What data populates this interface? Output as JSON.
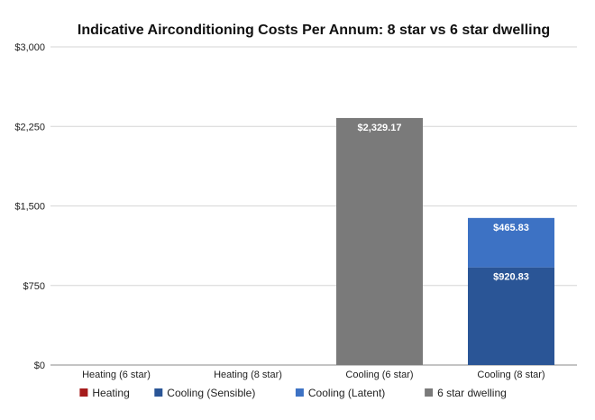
{
  "chart_data": {
    "type": "bar",
    "stacked": true,
    "title": "Indicative Airconditioning Costs Per Annum: 8 star vs 6 star dwelling",
    "xlabel": "",
    "ylabel": "",
    "ylim": [
      0,
      3000
    ],
    "y_ticks": [
      0,
      750,
      1500,
      2250,
      3000
    ],
    "y_tick_labels": [
      "$0",
      "$750",
      "$1,500",
      "$2,250",
      "$3,000"
    ],
    "grid": true,
    "legend_position": "bottom",
    "categories": [
      "Heating (6 star)",
      "Heating (8 star)",
      "Cooling (6 star)",
      "Cooling (8 star)"
    ],
    "series": [
      {
        "name": "Heating",
        "color": "#a61c1c",
        "values": [
          0,
          0,
          0,
          0
        ],
        "labels": [
          "",
          "",
          "",
          ""
        ]
      },
      {
        "name": "Cooling (Sensible)",
        "color": "#2a5596",
        "values": [
          0,
          0,
          0,
          920.83
        ],
        "labels": [
          "",
          "",
          "",
          "$920.83"
        ]
      },
      {
        "name": "Cooling (Latent)",
        "color": "#3d72c4",
        "values": [
          0,
          0,
          0,
          465.83
        ],
        "labels": [
          "",
          "",
          "",
          "$465.83"
        ]
      },
      {
        "name": "6 star dwelling",
        "color": "#7a7a7a",
        "values": [
          0,
          0,
          2329.17,
          0
        ],
        "labels": [
          "",
          "",
          "$2,329.17",
          ""
        ]
      }
    ]
  }
}
